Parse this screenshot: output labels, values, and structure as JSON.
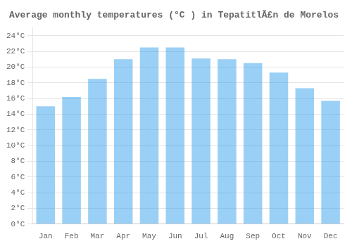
{
  "chart_data": {
    "type": "bar",
    "title": "Average monthly temperatures (°C ) in TepatitlÃ£n de Morelos",
    "categories": [
      "Jan",
      "Feb",
      "Mar",
      "Apr",
      "May",
      "Jun",
      "Jul",
      "Aug",
      "Sep",
      "Oct",
      "Nov",
      "Dec"
    ],
    "values": [
      15.0,
      16.2,
      18.5,
      21.0,
      22.5,
      22.5,
      21.1,
      21.0,
      20.5,
      19.3,
      17.3,
      15.7
    ],
    "ylim": [
      0,
      25
    ],
    "yticks": [
      {
        "value": 0,
        "label": "0°C"
      },
      {
        "value": 2,
        "label": "2°C"
      },
      {
        "value": 4,
        "label": "4°C"
      },
      {
        "value": 6,
        "label": "6°C"
      },
      {
        "value": 8,
        "label": "8°C"
      },
      {
        "value": 10,
        "label": "10°C"
      },
      {
        "value": 12,
        "label": "12°C"
      },
      {
        "value": 14,
        "label": "14°C"
      },
      {
        "value": 16,
        "label": "16°C"
      },
      {
        "value": 18,
        "label": "18°C"
      },
      {
        "value": 20,
        "label": "20°C"
      },
      {
        "value": 22,
        "label": "22°C"
      },
      {
        "value": 24,
        "label": "24°C"
      }
    ],
    "grid": true
  }
}
